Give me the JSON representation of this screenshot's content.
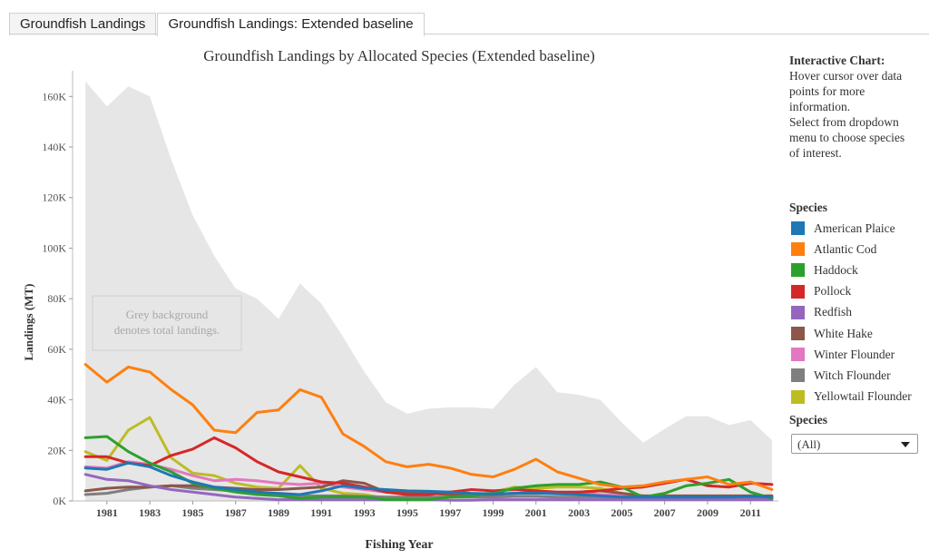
{
  "tabs": [
    {
      "label": "Groundfish Landings",
      "active": false
    },
    {
      "label": "Groundfish Landings: Extended baseline",
      "active": true
    }
  ],
  "note": {
    "title": "Interactive Chart:",
    "lines": [
      "Hover cursor over data",
      "points for more",
      "information.",
      "Select from dropdown",
      "menu to choose species",
      "of interest."
    ]
  },
  "legend": {
    "title": "Species",
    "items": [
      {
        "name": "American Plaice",
        "color": "#1f77b4"
      },
      {
        "name": "Atlantic Cod",
        "color": "#ff7f0e"
      },
      {
        "name": "Haddock",
        "color": "#2ca02c"
      },
      {
        "name": "Pollock",
        "color": "#d62728"
      },
      {
        "name": "Redfish",
        "color": "#9467bd"
      },
      {
        "name": "White Hake",
        "color": "#8c564b"
      },
      {
        "name": "Winter Flounder",
        "color": "#e377c2"
      },
      {
        "name": "Witch Flounder",
        "color": "#7f7f7f"
      },
      {
        "name": "Yellowtail Flounder",
        "color": "#bcbd22"
      }
    ]
  },
  "filter": {
    "label": "Species",
    "value": "(All)"
  },
  "chart_data": {
    "type": "line",
    "title": "Groundfish Landings by Allocated Species (Extended baseline)",
    "xlabel": "Fishing Year",
    "ylabel": "Landings (MT)",
    "x": [
      1980,
      1981,
      1982,
      1983,
      1984,
      1985,
      1986,
      1987,
      1988,
      1989,
      1990,
      1991,
      1992,
      1993,
      1994,
      1995,
      1996,
      1997,
      1998,
      1999,
      2000,
      2001,
      2002,
      2003,
      2004,
      2005,
      2006,
      2007,
      2008,
      2009,
      2010,
      2011,
      2012
    ],
    "xlim": [
      1979.4,
      2012.3
    ],
    "ylim": [
      0,
      168000
    ],
    "xticks": [
      1981,
      1983,
      1985,
      1987,
      1989,
      1991,
      1993,
      1995,
      1997,
      1999,
      2001,
      2003,
      2005,
      2007,
      2009,
      2011
    ],
    "yticks": [
      0,
      20000,
      40000,
      60000,
      80000,
      100000,
      120000,
      140000,
      160000
    ],
    "ytick_labels": [
      "0K",
      "20K",
      "40K",
      "60K",
      "80K",
      "100K",
      "120K",
      "140K",
      "160K"
    ],
    "annotation": "Grey background denotes total landings.",
    "annotation_lines": [
      "Grey background",
      "denotes total landings."
    ],
    "background_total": {
      "color": "#e6e6e6",
      "values": [
        166000,
        156000,
        164000,
        160000,
        135000,
        113000,
        97000,
        84000,
        80000,
        72000,
        86000,
        78000,
        65000,
        51000,
        39000,
        34500,
        36500,
        37000,
        37000,
        36500,
        46000,
        53000,
        43000,
        42000,
        40000,
        31000,
        23000,
        28500,
        33500,
        33500,
        30000,
        32000,
        24000
      ]
    },
    "series": [
      {
        "name": "American Plaice",
        "values": [
          13000,
          12500,
          15000,
          13500,
          10000,
          7500,
          5500,
          4500,
          3500,
          3000,
          2500,
          4000,
          6000,
          5000,
          4500,
          4000,
          3800,
          3500,
          3000,
          2800,
          3000,
          3200,
          2800,
          2500,
          2000,
          1500,
          1500,
          1500,
          1500,
          1500,
          1500,
          1800,
          1500
        ]
      },
      {
        "name": "Atlantic Cod",
        "values": [
          54000,
          47000,
          53000,
          51000,
          44000,
          38000,
          28000,
          27000,
          35000,
          36000,
          44000,
          41000,
          26500,
          21500,
          15500,
          13500,
          14500,
          13000,
          10500,
          9500,
          12500,
          16500,
          11500,
          9000,
          6500,
          5500,
          6000,
          7500,
          8500,
          9500,
          6500,
          7500,
          4500
        ]
      },
      {
        "name": "Haddock",
        "values": [
          25000,
          25500,
          19500,
          15000,
          11500,
          7000,
          5000,
          3500,
          2500,
          2000,
          1000,
          1500,
          1500,
          1500,
          500,
          500,
          500,
          1500,
          2000,
          3000,
          5000,
          6000,
          6500,
          6500,
          7500,
          5500,
          1500,
          3000,
          6000,
          7000,
          8500,
          3500,
          1000
        ]
      },
      {
        "name": "Pollock",
        "values": [
          17500,
          17500,
          15000,
          14000,
          18000,
          20500,
          25000,
          21000,
          15500,
          11500,
          9500,
          7500,
          7000,
          5500,
          3500,
          2500,
          2500,
          3500,
          4500,
          4000,
          4500,
          4000,
          3500,
          3500,
          4000,
          5000,
          5500,
          7000,
          8500,
          6000,
          5500,
          7000,
          6500
        ]
      },
      {
        "name": "Redfish",
        "values": [
          10500,
          8500,
          8000,
          6000,
          4500,
          3500,
          2500,
          1500,
          1000,
          500,
          500,
          500,
          500,
          500,
          500,
          500,
          500,
          300,
          300,
          500,
          500,
          500,
          500,
          500,
          500,
          500,
          500,
          500,
          500,
          500,
          500,
          500,
          500
        ]
      },
      {
        "name": "White Hake",
        "values": [
          4000,
          5000,
          5500,
          5500,
          6000,
          6000,
          5500,
          5000,
          4500,
          4500,
          5000,
          5500,
          8000,
          7000,
          3500,
          3000,
          3000,
          2500,
          2500,
          2500,
          3000,
          3000,
          3000,
          3500,
          4000,
          3000,
          2000,
          2000,
          2000,
          2000,
          2000,
          2000,
          2000
        ]
      },
      {
        "name": "Winter Flounder",
        "values": [
          13500,
          13000,
          15500,
          14500,
          12500,
          10000,
          8000,
          8500,
          8000,
          7000,
          6500,
          7000,
          5500,
          4500,
          3500,
          3000,
          3000,
          3000,
          2500,
          2500,
          3000,
          3500,
          3500,
          3000,
          2500,
          2000,
          1800,
          1800,
          1800,
          1800,
          1800,
          1800,
          1500
        ]
      },
      {
        "name": "Witch Flounder",
        "values": [
          2500,
          3000,
          4500,
          5500,
          6000,
          5000,
          4500,
          4000,
          3500,
          2500,
          2000,
          2000,
          2000,
          1800,
          1500,
          1500,
          1500,
          1500,
          1500,
          1500,
          1800,
          1800,
          1500,
          1500,
          1500,
          1000,
          1000,
          800,
          800,
          800,
          800,
          800,
          800
        ]
      },
      {
        "name": "Yellowtail Flounder",
        "values": [
          19500,
          16000,
          28000,
          33000,
          17000,
          11000,
          10000,
          7000,
          5500,
          5000,
          14000,
          5000,
          3000,
          2500,
          1000,
          1500,
          1500,
          1500,
          2000,
          3500,
          5500,
          5000,
          5500,
          5500,
          5000,
          3000,
          1500,
          1500,
          1500,
          1500,
          1500,
          1500,
          1500
        ]
      }
    ]
  }
}
